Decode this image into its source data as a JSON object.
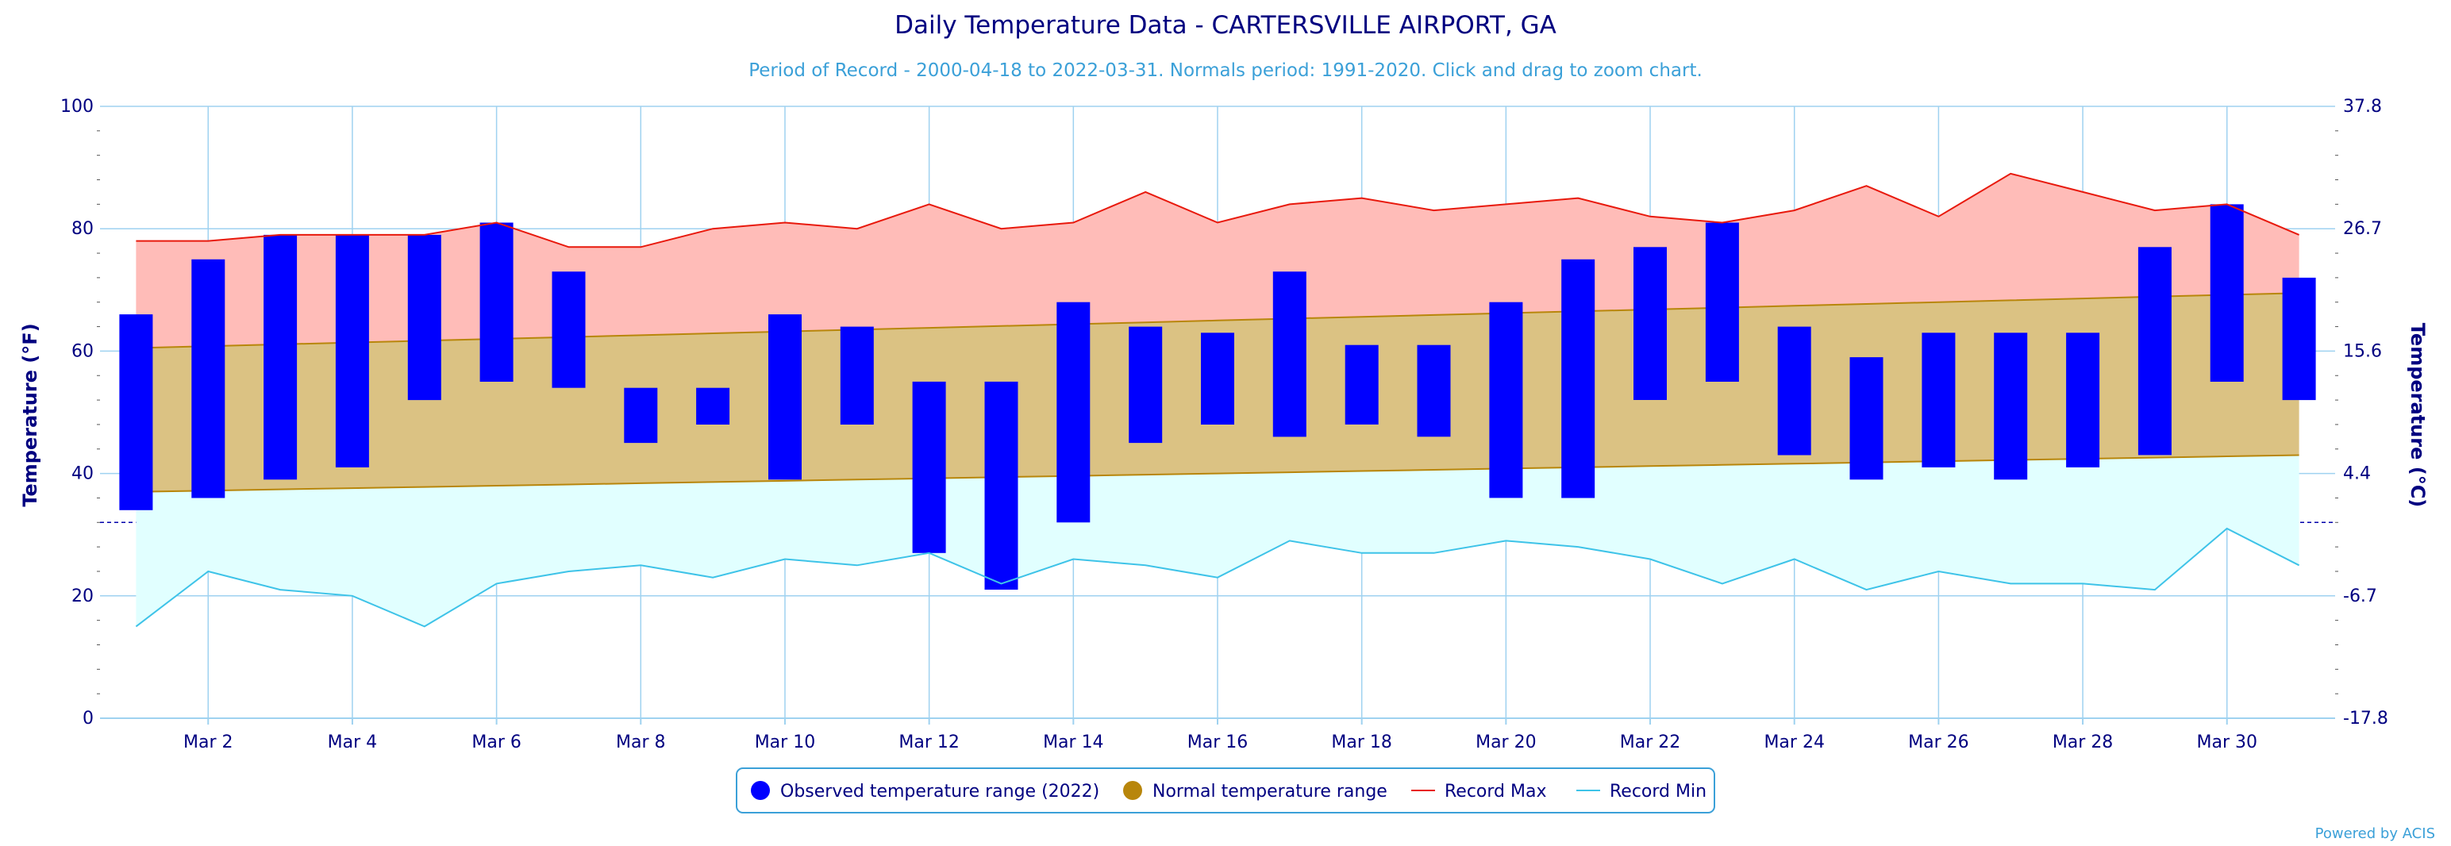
{
  "chart_data": {
    "type": "bar",
    "title": "Daily Temperature Data - CARTERSVILLE AIRPORT, GA",
    "subtitle": "Period of Record - 2000-04-18 to 2022-03-31. Normals period: 1991-2020. Click and drag to zoom chart.",
    "ylabel": "Temperature (°F)",
    "ylabel_right": "Temperature (°C)",
    "ylim": [
      0,
      100
    ],
    "yticks": [
      0,
      20,
      40,
      60,
      80,
      100
    ],
    "yticks_right": [
      "-17.8",
      "-6.7",
      "4.4",
      "15.6",
      "26.7",
      "37.8"
    ],
    "freezing_line": 32,
    "days": [
      1,
      2,
      3,
      4,
      5,
      6,
      7,
      8,
      9,
      10,
      11,
      12,
      13,
      14,
      15,
      16,
      17,
      18,
      19,
      20,
      21,
      22,
      23,
      24,
      25,
      26,
      27,
      28,
      29,
      30,
      31
    ],
    "xtick_labels": [
      "Mar 2",
      "Mar 4",
      "Mar 6",
      "Mar 8",
      "Mar 10",
      "Mar 12",
      "Mar 14",
      "Mar 16",
      "Mar 18",
      "Mar 20",
      "Mar 22",
      "Mar 24",
      "Mar 26",
      "Mar 28",
      "Mar 30"
    ],
    "xtick_days": [
      2,
      4,
      6,
      8,
      10,
      12,
      14,
      16,
      18,
      20,
      22,
      24,
      26,
      28,
      30
    ],
    "series": [
      {
        "name": "Observed temperature range (2022)",
        "color": "#0000ff",
        "low": [
          34,
          36,
          39,
          41,
          52,
          55,
          54,
          45,
          48,
          39,
          48,
          27,
          21,
          32,
          45,
          48,
          46,
          48,
          46,
          36,
          36,
          52,
          55,
          43,
          39,
          41,
          39,
          41,
          43,
          55,
          52
        ],
        "high": [
          66,
          75,
          79,
          79,
          79,
          81,
          73,
          54,
          54,
          66,
          64,
          55,
          55,
          68,
          64,
          63,
          73,
          61,
          61,
          68,
          75,
          77,
          81,
          64,
          59,
          63,
          63,
          63,
          77,
          84,
          72
        ]
      },
      {
        "name": "Normal temperature range",
        "color": "#b8860b",
        "low": [
          37.0,
          37.2,
          37.4,
          37.6,
          37.8,
          38.0,
          38.2,
          38.4,
          38.6,
          38.8,
          39.0,
          39.2,
          39.4,
          39.6,
          39.8,
          40.0,
          40.2,
          40.4,
          40.6,
          40.8,
          41.0,
          41.2,
          41.4,
          41.6,
          41.8,
          42.0,
          42.2,
          42.4,
          42.6,
          42.8,
          43.0
        ],
        "high": [
          60.5,
          60.8,
          61.1,
          61.4,
          61.7,
          62.0,
          62.3,
          62.6,
          62.9,
          63.2,
          63.5,
          63.8,
          64.1,
          64.4,
          64.7,
          65.0,
          65.3,
          65.6,
          65.9,
          66.2,
          66.5,
          66.8,
          67.1,
          67.4,
          67.7,
          68.0,
          68.3,
          68.6,
          68.9,
          69.2,
          69.5
        ]
      },
      {
        "name": "Record Max",
        "color": "#e8190c",
        "values": [
          78,
          78,
          79,
          79,
          79,
          81,
          77,
          77,
          80,
          81,
          80,
          84,
          80,
          81,
          86,
          81,
          84,
          85,
          83,
          84,
          85,
          82,
          81,
          83,
          87,
          82,
          89,
          86,
          83,
          84,
          79
        ]
      },
      {
        "name": "Record Min",
        "color": "#3ec3e8",
        "values": [
          15,
          24,
          21,
          20,
          15,
          22,
          24,
          25,
          23,
          26,
          25,
          27,
          22,
          26,
          25,
          23,
          29,
          27,
          27,
          29,
          28,
          26,
          22,
          26,
          21,
          24,
          22,
          22,
          21,
          31,
          25
        ]
      }
    ],
    "fill_colors": {
      "record_band": "#ffbcb8",
      "normal_band": "#dbc283",
      "cold_band": "#e1ffff"
    },
    "legend_position": "bottom-center",
    "credit": "Powered by ACIS"
  }
}
